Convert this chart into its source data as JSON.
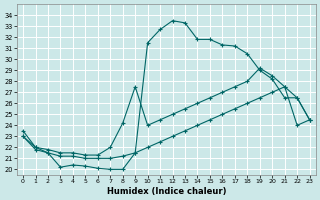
{
  "xlabel": "Humidex (Indice chaleur)",
  "background_color": "#cce8e8",
  "grid_color": "#b0d0d0",
  "line_color": "#006666",
  "xlim": [
    -0.5,
    23.5
  ],
  "ylim": [
    19.5,
    35.0
  ],
  "xticks": [
    0,
    1,
    2,
    3,
    4,
    5,
    6,
    7,
    8,
    9,
    10,
    11,
    12,
    13,
    14,
    15,
    16,
    17,
    18,
    19,
    20,
    21,
    22,
    23
  ],
  "yticks": [
    20,
    21,
    22,
    23,
    24,
    25,
    26,
    27,
    28,
    29,
    30,
    31,
    32,
    33,
    34
  ],
  "line1_x": [
    0,
    1,
    2,
    3,
    4,
    5,
    6,
    7,
    8,
    9,
    10,
    11,
    12,
    13,
    14,
    15,
    16,
    17,
    18,
    19,
    20,
    21,
    22,
    23
  ],
  "line1_y": [
    23.5,
    22.0,
    21.5,
    20.2,
    20.4,
    20.3,
    20.1,
    20.0,
    20.0,
    21.5,
    31.5,
    32.7,
    33.5,
    33.3,
    31.8,
    31.8,
    31.3,
    31.2,
    30.5,
    29.0,
    28.2,
    26.5,
    26.5,
    24.5
  ],
  "line2_x": [
    0,
    1,
    2,
    3,
    4,
    5,
    6,
    7,
    8,
    9,
    10,
    11,
    12,
    13,
    14,
    15,
    16,
    17,
    18,
    19,
    20,
    21,
    22,
    23
  ],
  "line2_y": [
    23.0,
    22.0,
    21.8,
    21.5,
    21.5,
    21.3,
    21.3,
    22.0,
    24.2,
    27.5,
    24.0,
    24.5,
    25.0,
    25.5,
    26.0,
    26.5,
    27.0,
    27.5,
    28.0,
    29.2,
    28.5,
    27.5,
    26.5,
    24.5
  ],
  "line3_x": [
    0,
    1,
    2,
    3,
    4,
    5,
    6,
    7,
    8,
    9,
    10,
    11,
    12,
    13,
    14,
    15,
    16,
    17,
    18,
    19,
    20,
    21,
    22,
    23
  ],
  "line3_y": [
    23.0,
    21.8,
    21.5,
    21.2,
    21.2,
    21.0,
    21.0,
    21.0,
    21.2,
    21.5,
    22.0,
    22.5,
    23.0,
    23.5,
    24.0,
    24.5,
    25.0,
    25.5,
    26.0,
    26.5,
    27.0,
    27.5,
    24.0,
    24.5
  ]
}
